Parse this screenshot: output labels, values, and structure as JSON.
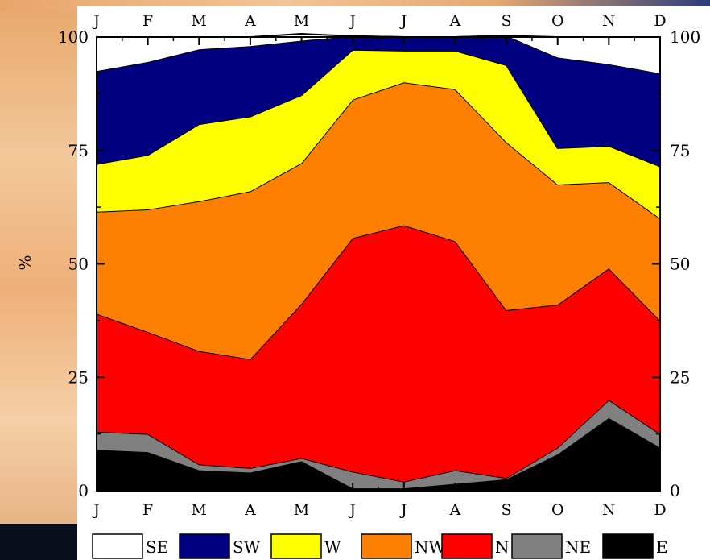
{
  "chart_data": {
    "type": "area",
    "stacked": true,
    "ylabel": "%",
    "ylim": [
      0,
      100
    ],
    "yticks": [
      0,
      25,
      50,
      75,
      100
    ],
    "categories": [
      "J",
      "F",
      "M",
      "A",
      "M",
      "J",
      "J",
      "A",
      "S",
      "O",
      "N",
      "D"
    ],
    "legend_position": "bottom",
    "series": [
      {
        "name": "E",
        "color": "#000000",
        "values": [
          9,
          8.5,
          4.5,
          4,
          6.5,
          0.5,
          0.5,
          1.5,
          2.5,
          8,
          16,
          9.5
        ]
      },
      {
        "name": "NE",
        "color": "#808080",
        "values": [
          4,
          4,
          1.3,
          1,
          0.7,
          3.7,
          1.5,
          3,
          0.3,
          1.5,
          4,
          3
        ]
      },
      {
        "name": "N",
        "color": "#ff0000",
        "values": [
          26,
          22.5,
          25,
          24,
          34,
          51.5,
          56.5,
          50.5,
          37,
          31.5,
          29,
          25
        ]
      },
      {
        "name": "NW",
        "color": "#ff8000",
        "values": [
          22.5,
          27,
          33,
          37,
          31,
          30.5,
          31.5,
          33.5,
          37,
          26.5,
          19,
          22.5
        ]
      },
      {
        "name": "W",
        "color": "#ffff00",
        "values": [
          10.5,
          12,
          17,
          16.5,
          15,
          11,
          7,
          8.5,
          17,
          8,
          8,
          11.5
        ]
      },
      {
        "name": "SW",
        "color": "#000080",
        "values": [
          20.5,
          20.5,
          16.5,
          15.5,
          12,
          3,
          3,
          3,
          6.5,
          20,
          18,
          20.5
        ]
      },
      {
        "name": "SE",
        "color": "#ffffff",
        "values": [
          7.5,
          5.5,
          2.7,
          2,
          1.5,
          0,
          0,
          0,
          0,
          4.5,
          6,
          8
        ]
      }
    ],
    "legend_order": [
      "SE",
      "SW",
      "W",
      "NW",
      "N",
      "NE",
      "E"
    ]
  }
}
